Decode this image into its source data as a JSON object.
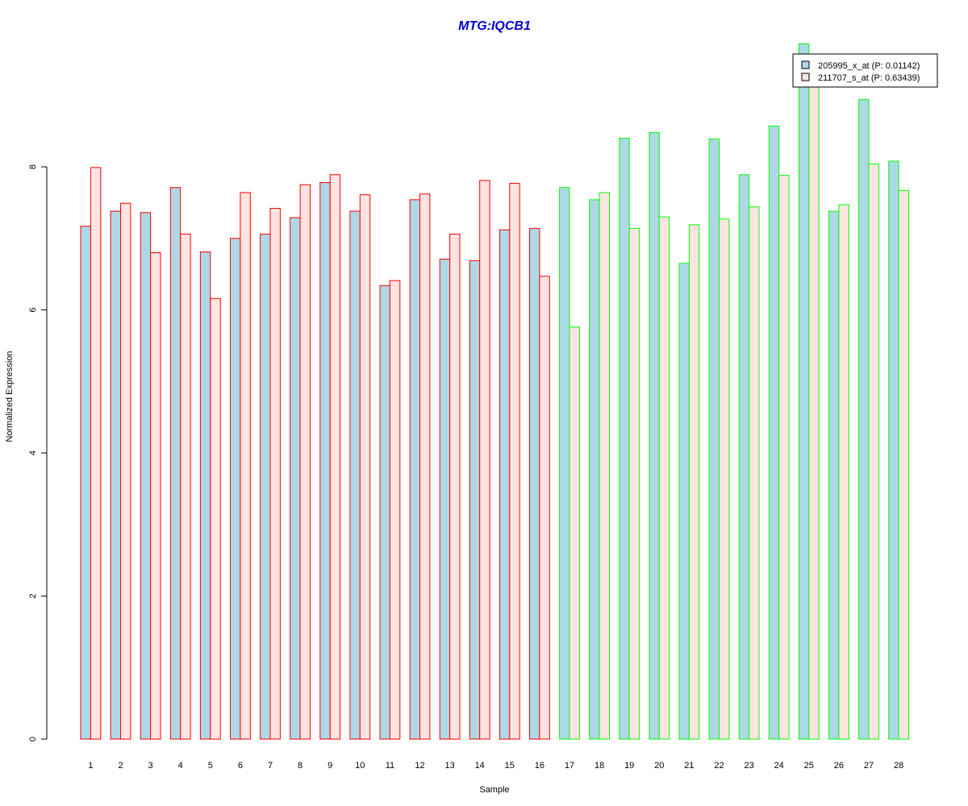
{
  "chart_data": {
    "type": "bar",
    "title": "MTG:IQCB1",
    "xlabel": "Sample",
    "ylabel": "Normalized Expression",
    "ylim": [
      0,
      10
    ],
    "yticks": [
      0,
      2,
      4,
      6,
      8
    ],
    "categories": [
      "1",
      "2",
      "3",
      "4",
      "5",
      "6",
      "7",
      "8",
      "9",
      "10",
      "11",
      "12",
      "13",
      "14",
      "15",
      "16",
      "17",
      "18",
      "19",
      "20",
      "21",
      "22",
      "23",
      "24",
      "25",
      "26",
      "27",
      "28"
    ],
    "groups": [
      {
        "samples": "1-16",
        "border_color": "#ff0000"
      },
      {
        "samples": "17-28",
        "border_color": "#00ff00"
      }
    ],
    "series": [
      {
        "name": "205995_x_at (P: 0.01142)",
        "fill": "#add8e6",
        "values": [
          7.17,
          7.38,
          7.36,
          7.71,
          6.81,
          7.0,
          7.06,
          7.29,
          7.78,
          7.38,
          6.34,
          7.54,
          6.71,
          6.69,
          7.12,
          7.14,
          7.71,
          7.54,
          8.4,
          8.48,
          6.65,
          8.39,
          7.89,
          8.57,
          9.72,
          7.38,
          8.94,
          8.08
        ]
      },
      {
        "name": "211707_s_at (P: 0.63439)",
        "fill": "#ffe4e1",
        "values": [
          7.99,
          7.49,
          6.8,
          7.06,
          6.16,
          7.64,
          7.42,
          7.75,
          7.89,
          7.61,
          6.41,
          7.62,
          7.06,
          7.81,
          7.77,
          6.47,
          5.76,
          7.64,
          7.14,
          7.3,
          7.19,
          7.27,
          7.44,
          7.88,
          9.39,
          7.47,
          8.04,
          7.67
        ]
      }
    ],
    "legend_position": "top-right",
    "title_color": "#0000cd"
  }
}
